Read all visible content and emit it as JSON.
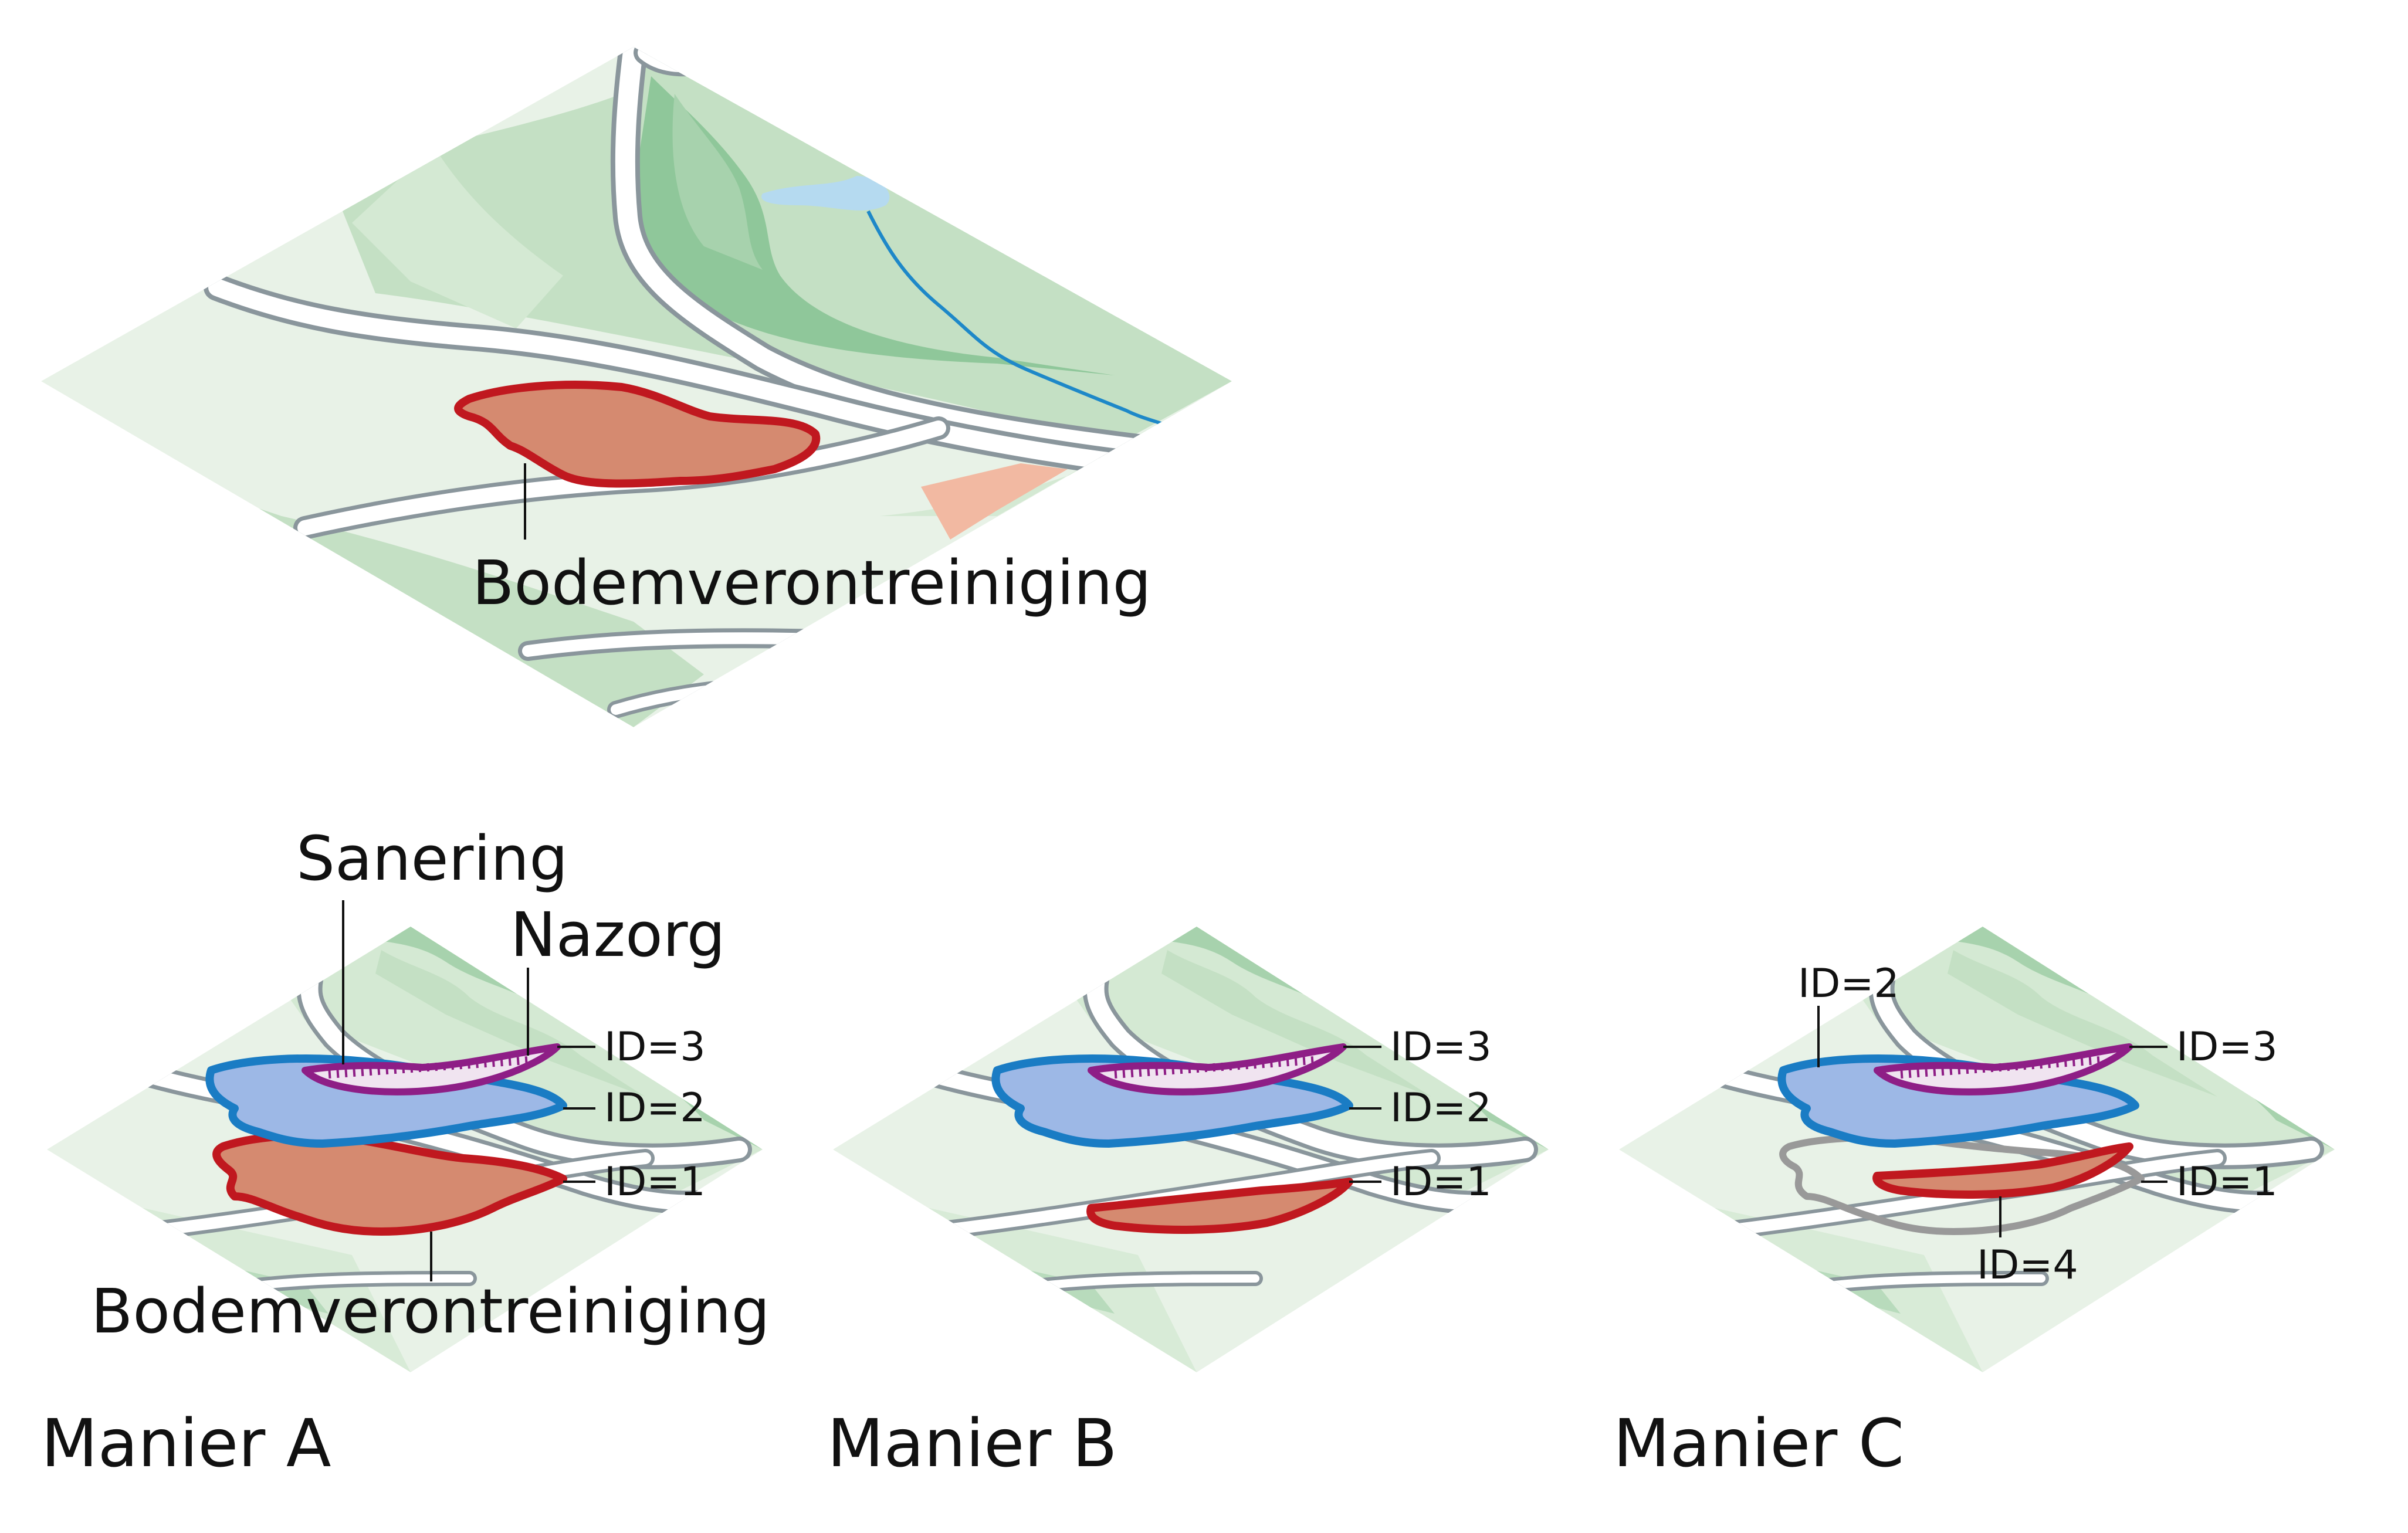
{
  "colors": {
    "land_light": "#e8f2e7",
    "land_mid": "#c4e0c4",
    "land_dark": "#8fc79a",
    "road_fill": "#ffffff",
    "road_edge": "#8a969c",
    "water": "#b5daf0",
    "stream": "#1e88c8",
    "contamination_fill": "#d58a70",
    "contamination_edge": "#c0181f",
    "remediation_fill": "#9db8e6",
    "remediation_edge": "#1a7cc4",
    "aftercare_edge": "#8e1e86",
    "grey_outline": "#999999",
    "peach": "#f2b9a2"
  },
  "top_map": {
    "label": "Bodemverontreiniging"
  },
  "panel_a": {
    "caption": "Manier A",
    "label_sanering": "Sanering",
    "label_nazorg": "Nazorg",
    "label_bodem": "Bodemverontreiniging",
    "id1": "ID=1",
    "id2": "ID=2",
    "id3": "ID=3"
  },
  "panel_b": {
    "caption": "Manier B",
    "id1": "ID=1",
    "id2": "ID=2",
    "id3": "ID=3"
  },
  "panel_c": {
    "caption": "Manier C",
    "id1": "ID=1",
    "id2": "ID=2",
    "id3": "ID=3",
    "id4": "ID=4"
  }
}
